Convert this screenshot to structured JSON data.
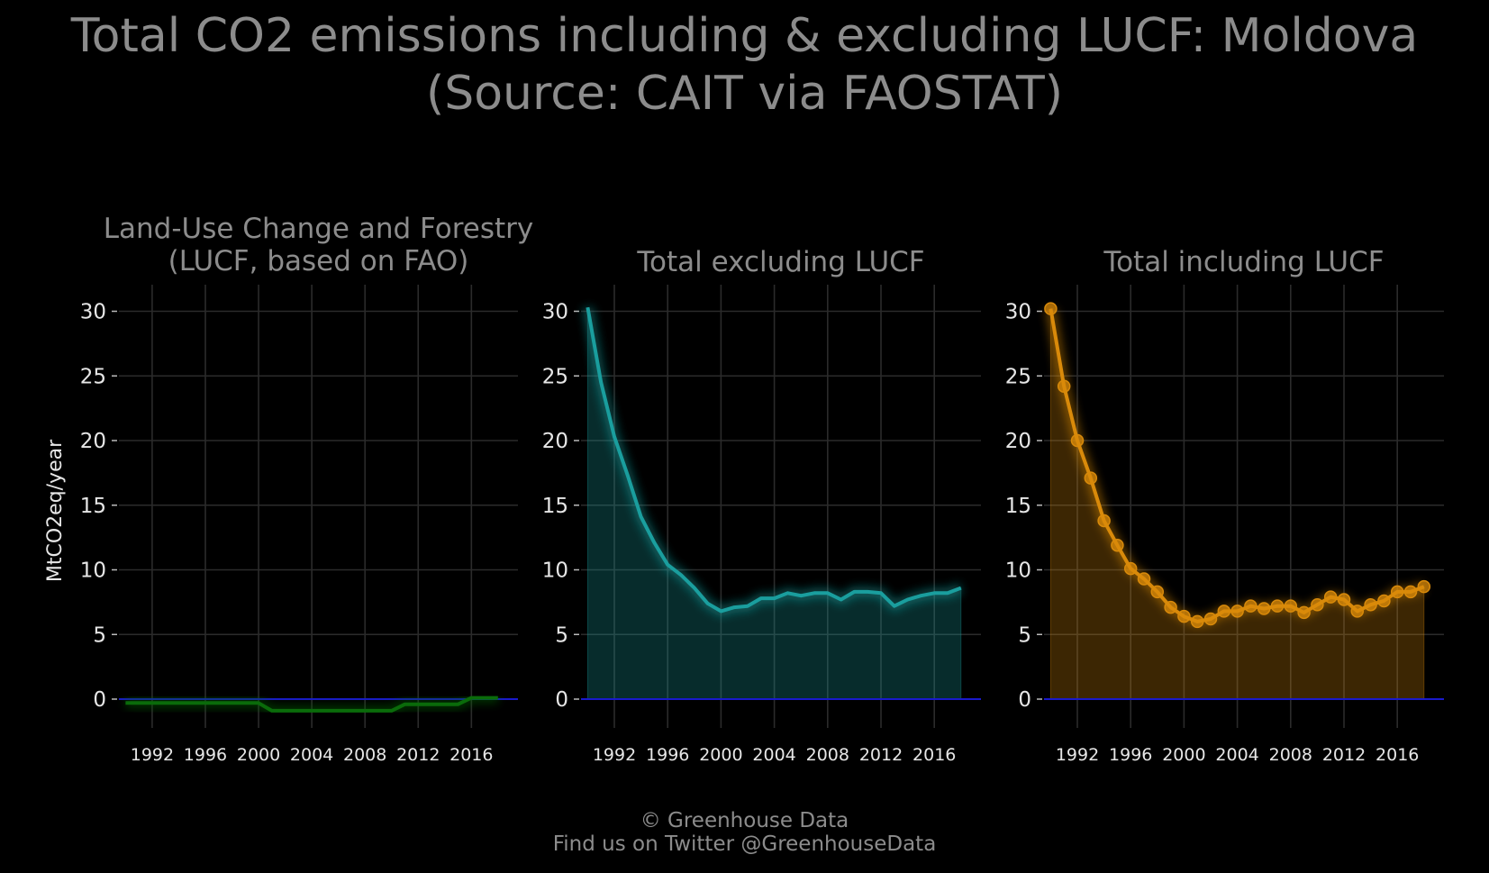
{
  "title": {
    "line1": "Total CO2 emissions including & excluding LUCF: Moldova",
    "line2": "(Source: CAIT via FAOSTAT)"
  },
  "footer": {
    "line1": "© Greenhouse Data",
    "line2": "Find us on Twitter @GreenhouseData"
  },
  "colors": {
    "background": "#000000",
    "grid": "#2b2b2b",
    "zero_line": "#1a1acc",
    "lucf": "#0a6b0a",
    "excl": "#1a9e9e",
    "incl": "#d98a0a"
  },
  "chart_data": [
    {
      "type": "area",
      "title": "Land-Use Change and Forestry\n(LUCF, based on FAO)",
      "ylabel": "MtCO2eq/year",
      "ylim": [
        -3,
        32
      ],
      "yticks": [
        0,
        5,
        10,
        15,
        20,
        25,
        30
      ],
      "xticks": [
        1992,
        1996,
        2000,
        2004,
        2008,
        2012,
        2016
      ],
      "x": [
        1990,
        1991,
        1992,
        1993,
        1994,
        1995,
        1996,
        1997,
        1998,
        1999,
        2000,
        2001,
        2002,
        2003,
        2004,
        2005,
        2006,
        2007,
        2008,
        2009,
        2010,
        2011,
        2012,
        2013,
        2014,
        2015,
        2016,
        2017,
        2018
      ],
      "series": [
        {
          "values": [
            -0.3,
            -0.3,
            -0.3,
            -0.3,
            -0.3,
            -0.3,
            -0.3,
            -0.3,
            -0.3,
            -0.3,
            -0.3,
            -0.9,
            -0.9,
            -0.9,
            -0.9,
            -0.9,
            -0.9,
            -0.9,
            -0.9,
            -0.9,
            -0.9,
            -0.4,
            -0.4,
            -0.4,
            -0.4,
            -0.4,
            0.1,
            0.1,
            0.1
          ]
        }
      ],
      "color_key": "lucf",
      "markers": false
    },
    {
      "type": "area",
      "title": "Total excluding LUCF",
      "ylim": [
        -3,
        32
      ],
      "yticks": [
        0,
        5,
        10,
        15,
        20,
        25,
        30
      ],
      "xticks": [
        1992,
        1996,
        2000,
        2004,
        2008,
        2012,
        2016
      ],
      "x": [
        1990,
        1991,
        1992,
        1993,
        1994,
        1995,
        1996,
        1997,
        1998,
        1999,
        2000,
        2001,
        2002,
        2003,
        2004,
        2005,
        2006,
        2007,
        2008,
        2009,
        2010,
        2011,
        2012,
        2013,
        2014,
        2015,
        2016,
        2017,
        2018
      ],
      "series": [
        {
          "values": [
            30.3,
            24.5,
            20.3,
            17.3,
            14.1,
            12.1,
            10.4,
            9.6,
            8.6,
            7.4,
            6.8,
            7.1,
            7.2,
            7.8,
            7.8,
            8.2,
            8.0,
            8.2,
            8.2,
            7.7,
            8.3,
            8.3,
            8.2,
            7.2,
            7.7,
            8.0,
            8.2,
            8.2,
            8.6
          ]
        }
      ],
      "color_key": "excl",
      "markers": false
    },
    {
      "type": "area",
      "title": "Total including LUCF",
      "ylim": [
        -3,
        32
      ],
      "yticks": [
        0,
        5,
        10,
        15,
        20,
        25,
        30
      ],
      "xticks": [
        1992,
        1996,
        2000,
        2004,
        2008,
        2012,
        2016
      ],
      "x": [
        1990,
        1991,
        1992,
        1993,
        1994,
        1995,
        1996,
        1997,
        1998,
        1999,
        2000,
        2001,
        2002,
        2003,
        2004,
        2005,
        2006,
        2007,
        2008,
        2009,
        2010,
        2011,
        2012,
        2013,
        2014,
        2015,
        2016,
        2017,
        2018
      ],
      "series": [
        {
          "values": [
            30.2,
            24.2,
            20.0,
            17.1,
            13.8,
            11.9,
            10.1,
            9.3,
            8.3,
            7.1,
            6.4,
            6.0,
            6.2,
            6.8,
            6.8,
            7.2,
            7.0,
            7.2,
            7.2,
            6.7,
            7.3,
            7.9,
            7.7,
            6.8,
            7.3,
            7.6,
            8.3,
            8.3,
            8.7
          ]
        }
      ],
      "color_key": "incl",
      "markers": true
    }
  ]
}
